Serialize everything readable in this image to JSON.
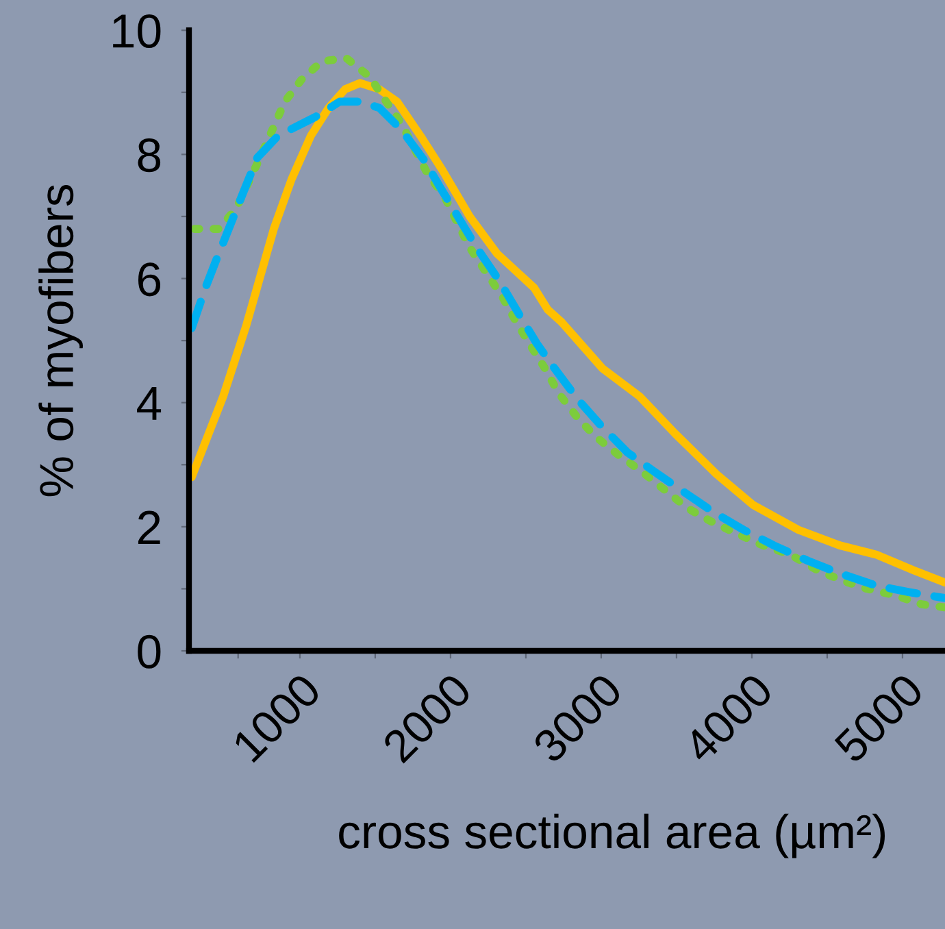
{
  "chart_data": {
    "type": "line",
    "xlabel": "cross sectional area (µm²)",
    "ylabel": "% of myofibers",
    "xlim": [
      264,
      5282
    ],
    "ylim": [
      0,
      10
    ],
    "xticks": [
      {
        "value": 590,
        "label": null
      },
      1000,
      {
        "value": 1500,
        "label": null
      },
      2000,
      {
        "value": 2500,
        "label": null
      },
      3000,
      {
        "value": 3500,
        "label": null
      },
      4000,
      {
        "value": 4500,
        "label": null
      },
      5000
    ],
    "yticks": [
      0,
      {
        "value": 1,
        "label": null
      },
      2,
      {
        "value": 3,
        "label": null
      },
      4,
      {
        "value": 5,
        "label": null
      },
      6,
      {
        "value": 7,
        "label": null
      },
      8,
      {
        "value": 9,
        "label": null
      },
      10
    ],
    "grid": false,
    "marker": "none",
    "series": [
      {
        "color": "#ffc000",
        "line_style": "solid",
        "x": [
          282,
          491,
          645,
          827,
          945,
          1073,
          1191,
          1300,
          1400,
          1527,
          1645,
          1800,
          1945,
          2127,
          2309,
          2555,
          2645,
          2736,
          3009,
          3255,
          3491,
          3764,
          4009,
          4309,
          4582,
          4827,
          5073,
          5282
        ],
        "values": [
          2.8,
          4.1,
          5.25,
          6.8,
          7.6,
          8.3,
          8.75,
          9.05,
          9.15,
          9.05,
          8.85,
          8.3,
          7.75,
          7.0,
          6.4,
          5.85,
          5.5,
          5.3,
          4.55,
          4.1,
          3.5,
          2.85,
          2.35,
          1.95,
          1.7,
          1.55,
          1.3,
          1.1
        ]
      },
      {
        "color": "#7ccc3c",
        "line_style": "dotted",
        "x": [
          300,
          464,
          582,
          736,
          900,
          1009,
          1145,
          1309,
          1464,
          1573,
          1673,
          1845,
          1964,
          2055,
          2127,
          2345,
          2436,
          2536,
          2627,
          2718,
          2845,
          2964,
          3118,
          3264,
          3418,
          3573,
          3718,
          3891,
          4073,
          4255,
          4436,
          4582,
          4764,
          4945,
          5127,
          5282
        ],
        "values": [
          6.8,
          6.8,
          7.15,
          7.95,
          8.85,
          9.2,
          9.5,
          9.55,
          9.25,
          8.85,
          8.5,
          7.7,
          7.3,
          6.85,
          6.5,
          5.7,
          5.3,
          4.9,
          4.55,
          4.15,
          3.75,
          3.45,
          3.15,
          2.9,
          2.6,
          2.3,
          2.1,
          1.9,
          1.7,
          1.55,
          1.3,
          1.15,
          1.0,
          0.9,
          0.75,
          0.7
        ]
      },
      {
        "color": "#00b0f0",
        "line_style": "dashed",
        "x": [
          282,
          373,
          445,
          536,
          618,
          718,
          855,
          1100,
          1264,
          1400,
          1527,
          1673,
          1827,
          1936,
          2073,
          2173,
          2327,
          2436,
          2573,
          2691,
          2845,
          2991,
          3173,
          3345,
          3555,
          3736,
          3945,
          4145,
          4373,
          4582,
          4827,
          5036,
          5282
        ],
        "values": [
          5.2,
          5.85,
          6.3,
          6.85,
          7.35,
          7.95,
          8.3,
          8.6,
          8.85,
          8.85,
          8.75,
          8.4,
          7.9,
          7.45,
          6.9,
          6.5,
          5.95,
          5.5,
          4.95,
          4.55,
          4.05,
          3.65,
          3.2,
          2.9,
          2.55,
          2.25,
          1.95,
          1.7,
          1.45,
          1.25,
          1.05,
          0.95,
          0.85
        ]
      }
    ]
  }
}
